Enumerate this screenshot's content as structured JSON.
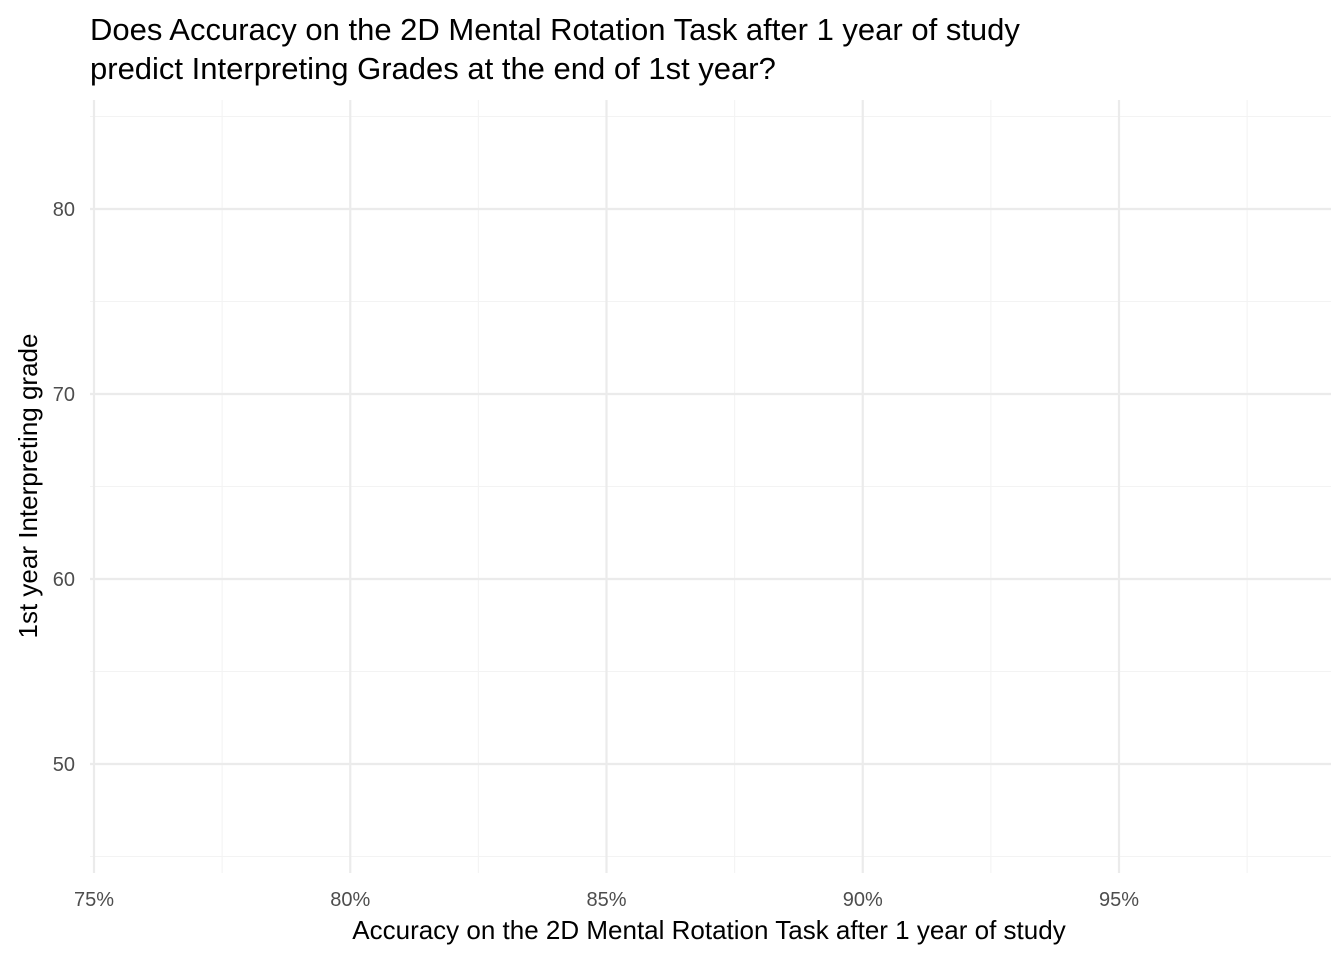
{
  "chart_data": {
    "type": "scatter",
    "title": "Does Accuracy on the 2D Mental Rotation Task after 1 year of study predict Interpreting Grades at the end of 1st year?",
    "title_lines": [
      "Does Accuracy on the 2D Mental Rotation Task after 1 year of study",
      "predict Interpreting Grades at the end of 1st year?"
    ],
    "xlabel": "Accuracy on the 2D Mental Rotation Task after 1 year of study",
    "ylabel": "1st year Interpreting grade",
    "xlim": [
      0.75,
      0.99
    ],
    "ylim": [
      45,
      85
    ],
    "x_ticks": [
      0.75,
      0.8,
      0.85,
      0.9,
      0.95
    ],
    "x_tick_labels": [
      "75%",
      "80%",
      "85%",
      "90%",
      "95%"
    ],
    "x_minor": [
      0.775,
      0.825,
      0.875,
      0.925,
      0.975
    ],
    "y_ticks": [
      50,
      60,
      70,
      80
    ],
    "y_tick_labels": [
      "50",
      "60",
      "70",
      "80"
    ],
    "y_minor": [
      45,
      55,
      65,
      75,
      85
    ],
    "grid": true,
    "points": [],
    "colors": {
      "grid_major": "#ebebeb",
      "grid_minor": "#f3f3f3",
      "tick_text": "#4d4d4d",
      "text": "#000000"
    }
  }
}
